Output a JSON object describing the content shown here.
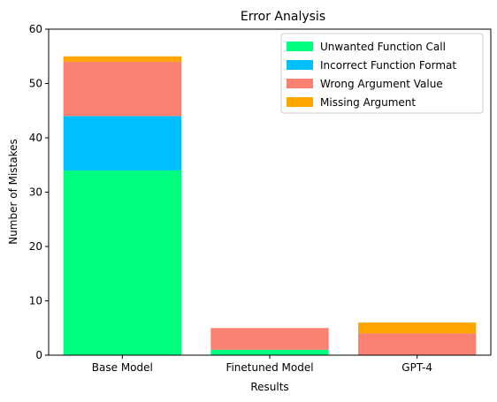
{
  "chart_data": {
    "type": "bar",
    "stacked": true,
    "title": "Error Analysis",
    "xlabel": "Results",
    "ylabel": "Number of Mistakes",
    "ylim": [
      0,
      60
    ],
    "yticks": [
      0,
      10,
      20,
      30,
      40,
      50,
      60
    ],
    "categories": [
      "Base Model",
      "Finetuned Model",
      "GPT-4"
    ],
    "series": [
      {
        "name": "Unwanted Function Call",
        "color": "#00ff7f",
        "values": [
          34,
          1,
          0
        ]
      },
      {
        "name": "Incorrect Function Format",
        "color": "#00bfff",
        "values": [
          10,
          0,
          0
        ]
      },
      {
        "name": "Wrong Argument Value",
        "color": "#fa8072",
        "values": [
          10,
          4,
          4
        ]
      },
      {
        "name": "Missing Argument",
        "color": "#ffa500",
        "values": [
          1,
          0,
          2
        ]
      }
    ],
    "legend_position": "top-right",
    "grid": false
  }
}
